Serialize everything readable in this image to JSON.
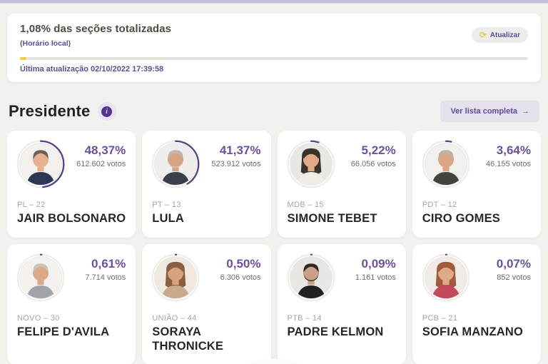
{
  "page": {
    "background": "#f2f1ee",
    "top_strip_color": "#c6bedd",
    "accent_purple": "#5f4a9e",
    "accent_yellow": "#efcf3a"
  },
  "totalization": {
    "title": "1,08% das seções totalizadas",
    "subtitle": "(Horário local)",
    "progress_percent": 1.08,
    "last_update": "Última atualização 02/10/2022 17:39:58",
    "refresh_label": "Atualizar",
    "refresh_glyph": "⟳"
  },
  "section": {
    "title": "Presidente",
    "info_glyph": "i",
    "view_all_label": "Ver lista completa",
    "arrow_glyph": "→"
  },
  "ring": {
    "track_color": "#ededeb",
    "progress_color": "#5b3e8f"
  },
  "candidates": [
    {
      "name": "JAIR BOLSONARO",
      "party": "PL – 22",
      "percent": 48.37,
      "percent_label": "48,37%",
      "votes_label": "612.602 votos",
      "avatar": {
        "bg": "#f3f1ee",
        "skin": "#e6b18c",
        "hair": "#6a6057",
        "clothes": "#2c3752",
        "hair_style": "short",
        "beard": ""
      }
    },
    {
      "name": "LULA",
      "party": "PT – 13",
      "percent": 41.37,
      "percent_label": "41,37%",
      "votes_label": "523.912 votos",
      "avatar": {
        "bg": "#efeeec",
        "skin": "#d9a37f",
        "hair": "#bdb7b0",
        "clothes": "#3a3f4a",
        "hair_style": "short",
        "beard": "#c9c3bb"
      }
    },
    {
      "name": "SIMONE TEBET",
      "party": "MDB – 15",
      "percent": 5.22,
      "percent_label": "5,22%",
      "votes_label": "66.056 votos",
      "avatar": {
        "bg": "#e9e7e3",
        "skin": "#e3aa87",
        "hair": "#3c332f",
        "clothes": "#f0ece6",
        "hair_style": "long",
        "beard": ""
      }
    },
    {
      "name": "CIRO GOMES",
      "party": "PDT – 12",
      "percent": 3.64,
      "percent_label": "3,64%",
      "votes_label": "46.155 votos",
      "avatar": {
        "bg": "#f2f0ed",
        "skin": "#dba684",
        "hair": "#b9b3ac",
        "clothes": "#45433f",
        "hair_style": "short",
        "beard": ""
      }
    },
    {
      "name": "FELIPE D'AVILA",
      "party": "NOVO – 30",
      "percent": 0.61,
      "percent_label": "0,61%",
      "votes_label": "7.714 votos",
      "avatar": {
        "bg": "#f4f2ef",
        "skin": "#dca888",
        "hair": "#c9c4bc",
        "clothes": "#a0a4a9",
        "hair_style": "short",
        "beard": ""
      }
    },
    {
      "name": "SORAYA THRONICKE",
      "party": "UNIÃO – 44",
      "percent": 0.5,
      "percent_label": "0,50%",
      "votes_label": "6.306 votos",
      "avatar": {
        "bg": "#efe9e2",
        "skin": "#d9a27e",
        "hair": "#8a5f3f",
        "clothes": "#caa98c",
        "hair_style": "long",
        "beard": ""
      }
    },
    {
      "name": "PADRE KELMON",
      "party": "PTB – 14",
      "percent": 0.09,
      "percent_label": "0,09%",
      "votes_label": "1.161 votos",
      "avatar": {
        "bg": "#e9e7e4",
        "skin": "#caa184",
        "hair": "#2f2a26",
        "clothes": "#23211f",
        "hair_style": "short",
        "beard": "#2f2a26"
      }
    },
    {
      "name": "SOFIA MANZANO",
      "party": "PCB – 21",
      "percent": 0.07,
      "percent_label": "0,07%",
      "votes_label": "852 votos",
      "avatar": {
        "bg": "#efece8",
        "skin": "#e0aa8a",
        "hair": "#a05a3a",
        "clothes": "#c24a5a",
        "hair_style": "long",
        "beard": ""
      }
    }
  ]
}
